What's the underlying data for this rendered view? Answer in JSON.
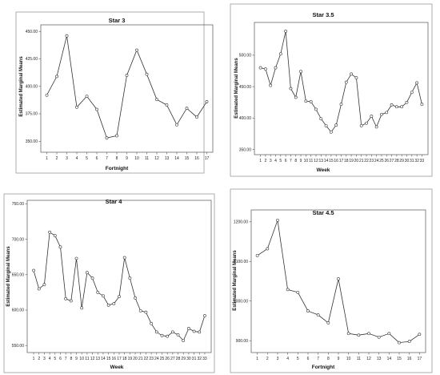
{
  "chart_data": [
    {
      "type": "line",
      "title": "Star 3",
      "xlabel": "Fortnight",
      "ylabel": "Estimated Marginal Means",
      "x": [
        1,
        2,
        3,
        4,
        5,
        6,
        7,
        8,
        9,
        10,
        11,
        12,
        13,
        14,
        15,
        16,
        17
      ],
      "y_ticks": [
        "350.00",
        "375.00",
        "400.00",
        "425.00",
        "450.00"
      ],
      "ylim": [
        340,
        456
      ],
      "series": [
        {
          "values": [
            392,
            409,
            446,
            381,
            391,
            379,
            353,
            355,
            410,
            433,
            411,
            388,
            383,
            365,
            380,
            372,
            386
          ]
        }
      ],
      "grid": false
    },
    {
      "type": "line",
      "title": "Star 3.5",
      "xlabel": "Week",
      "ylabel": "Estimated Marginal Means",
      "x": [
        1,
        2,
        3,
        4,
        5,
        6,
        7,
        8,
        9,
        10,
        11,
        12,
        13,
        14,
        15,
        16,
        17,
        18,
        19,
        20,
        21,
        22,
        23,
        24,
        25,
        26,
        27,
        28,
        29,
        30,
        31,
        32,
        33
      ],
      "y_ticks": [
        "350.00",
        "400.00",
        "450.00",
        "500.00"
      ],
      "ylim": [
        342,
        552
      ],
      "series": [
        {
          "values": [
            480,
            478,
            452,
            480,
            502,
            538,
            447,
            433,
            474,
            427,
            426,
            414,
            399,
            388,
            378,
            389,
            422,
            457,
            470,
            464,
            388,
            392,
            403,
            386,
            406,
            409,
            421,
            418,
            418,
            425,
            441,
            456,
            422
          ]
        }
      ],
      "grid": false
    },
    {
      "type": "line",
      "title": "Star 4",
      "xlabel": "Week",
      "ylabel": "Estimated Marginal Means",
      "x": [
        1,
        2,
        3,
        4,
        5,
        6,
        7,
        8,
        9,
        10,
        11,
        12,
        13,
        14,
        15,
        16,
        17,
        18,
        19,
        20,
        21,
        22,
        23,
        24,
        25,
        26,
        27,
        28,
        29,
        30,
        31,
        32,
        33
      ],
      "y_ticks": [
        "550.00",
        "600.00",
        "650.00",
        "700.00",
        "750.00"
      ],
      "ylim": [
        540,
        755
      ],
      "series": [
        {
          "values": [
            656,
            630,
            636,
            710,
            705,
            689,
            616,
            613,
            673,
            603,
            653,
            645,
            625,
            620,
            607,
            609,
            619,
            674,
            645,
            617,
            599,
            597,
            581,
            569,
            564,
            563,
            569,
            565,
            557,
            574,
            570,
            569,
            592
          ]
        }
      ],
      "grid": false
    },
    {
      "type": "line",
      "title": "Star 4.5",
      "xlabel": "Fortnight",
      "ylabel": "Estimated Marginal Means",
      "x": [
        1,
        2,
        3,
        4,
        5,
        6,
        7,
        8,
        9,
        10,
        11,
        12,
        13,
        14,
        15,
        16,
        17
      ],
      "y_ticks": [
        "900.00",
        "1000.00",
        "1100.00",
        "1200.00"
      ],
      "ylim": [
        870,
        1230
      ],
      "series": [
        {
          "values": [
            1115,
            1132,
            1204,
            1029,
            1022,
            975,
            965,
            945,
            1056,
            918,
            914,
            918,
            909,
            918,
            895,
            898,
            916
          ]
        }
      ],
      "grid": false
    }
  ]
}
